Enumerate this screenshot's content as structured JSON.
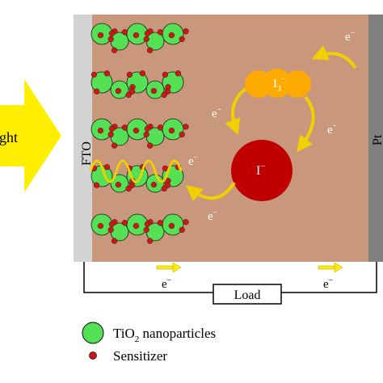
{
  "light_label": "ght",
  "fto_label": "FTO",
  "pt_label": "Pt",
  "iodide": {
    "base": "I",
    "sup": "−"
  },
  "triiodide": {
    "base": "I",
    "sub": "3",
    "sup": "−"
  },
  "electron": {
    "base": "e",
    "sup": "−"
  },
  "load_label": "Load",
  "legend": {
    "tio2": {
      "pre": "TiO",
      "sub": "2",
      "post": " nanoparticles"
    },
    "sensitizer": "Sensitizer"
  },
  "colors": {
    "electrolyte": "#c9977b",
    "fto": "#d3d3d3",
    "pt": "#808080",
    "light_arrow": "#ffee00",
    "tio2": "#55e055",
    "sensitizer": "#d11616",
    "iodide": "#c00000",
    "triiodide": "#ffaa00",
    "electron_arrow": "#f0d000"
  }
}
